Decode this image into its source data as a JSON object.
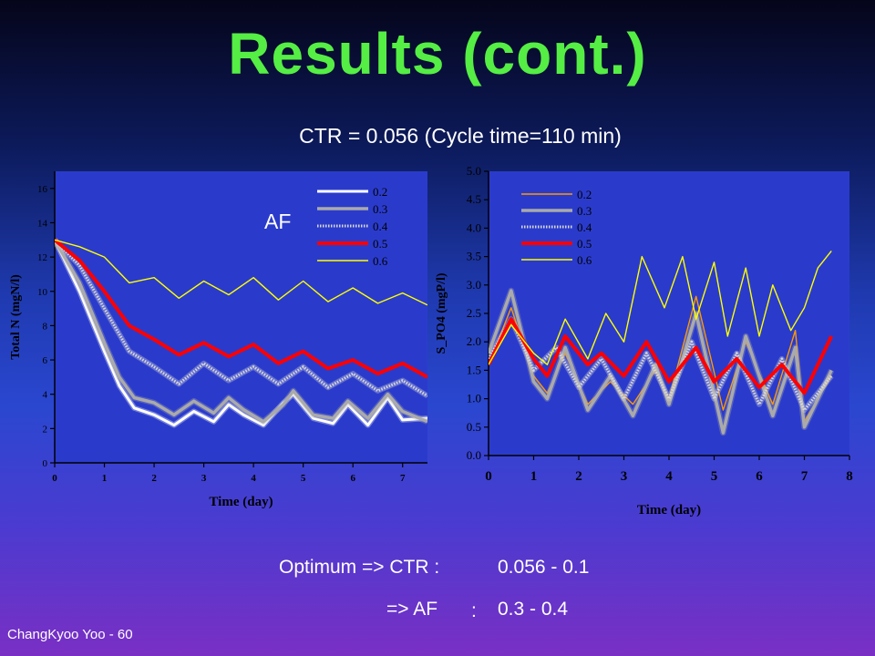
{
  "slide": {
    "title": "Results (cont.)",
    "subtitle": "CTR = 0.056 (Cycle time=110 min)",
    "af_label": "AF",
    "optimum_line1_prefix": "Optimum => CTR :",
    "optimum_line1_value": "0.056 - 0.1",
    "optimum_line2_prefix": "=> AF",
    "optimum_line2_colon": ":",
    "optimum_line2_value": "0.3 - 0.4",
    "credit": "ChangKyoo Yoo - 60"
  },
  "chart_data": [
    {
      "type": "line",
      "xlabel": "Time (day)",
      "ylabel": "Total N (mgN/l)",
      "xlim": [
        0,
        7.5
      ],
      "ylim": [
        0,
        17
      ],
      "x_ticks": [
        0,
        1,
        2,
        3,
        4,
        5,
        6,
        7
      ],
      "y_ticks": [
        0,
        2,
        4,
        6,
        8,
        10,
        12,
        14,
        16
      ],
      "legend_position": "top-right",
      "series": [
        {
          "name": "0.2",
          "color": "#ffffff",
          "x": [
            0,
            0.5,
            1.0,
            1.3,
            1.6,
            2.0,
            2.4,
            2.8,
            3.2,
            3.5,
            3.8,
            4.2,
            4.6,
            4.8,
            5.2,
            5.6,
            5.9,
            6.3,
            6.7,
            7.0,
            7.5
          ],
          "y": [
            13,
            10,
            6.5,
            4.5,
            3.2,
            2.8,
            2.2,
            3.0,
            2.4,
            3.4,
            2.8,
            2.2,
            3.5,
            4.0,
            2.6,
            2.3,
            3.4,
            2.2,
            3.8,
            2.5,
            2.6
          ]
        },
        {
          "name": "0.3",
          "color": "#aaaaaa",
          "x": [
            0,
            0.5,
            1.0,
            1.3,
            1.6,
            2.0,
            2.4,
            2.8,
            3.2,
            3.5,
            3.8,
            4.2,
            4.6,
            4.8,
            5.2,
            5.6,
            5.9,
            6.3,
            6.7,
            7.0,
            7.5
          ],
          "y": [
            13,
            10.5,
            7,
            5,
            3.8,
            3.5,
            2.8,
            3.6,
            2.9,
            3.8,
            3.1,
            2.4,
            3.4,
            4.2,
            2.8,
            2.6,
            3.6,
            2.6,
            4.0,
            3.0,
            2.4
          ]
        },
        {
          "name": "0.4",
          "color": "#d8d8d8",
          "x": [
            0,
            0.5,
            1.0,
            1.5,
            2.0,
            2.5,
            3.0,
            3.5,
            4.0,
            4.5,
            5.0,
            5.5,
            6.0,
            6.5,
            7.0,
            7.5
          ],
          "y": [
            13,
            11.5,
            9,
            6.5,
            5.6,
            4.6,
            5.8,
            4.8,
            5.6,
            4.6,
            5.6,
            4.4,
            5.2,
            4.2,
            4.8,
            3.9
          ]
        },
        {
          "name": "0.5",
          "color": "#ff0000",
          "x": [
            0,
            0.5,
            1.0,
            1.5,
            2.0,
            2.5,
            3.0,
            3.5,
            4.0,
            4.5,
            5.0,
            5.5,
            6.0,
            6.5,
            7.0,
            7.5
          ],
          "y": [
            13,
            11.8,
            10,
            8,
            7.2,
            6.3,
            7.0,
            6.2,
            6.9,
            5.8,
            6.5,
            5.5,
            6.0,
            5.2,
            5.8,
            5.0
          ]
        },
        {
          "name": "0.6",
          "color": "#ffff00",
          "x": [
            0,
            0.5,
            1.0,
            1.5,
            2.0,
            2.5,
            3.0,
            3.5,
            4.0,
            4.5,
            5.0,
            5.5,
            6.0,
            6.5,
            7.0,
            7.5
          ],
          "y": [
            13,
            12.6,
            12,
            10.5,
            10.8,
            9.6,
            10.6,
            9.8,
            10.8,
            9.5,
            10.6,
            9.4,
            10.2,
            9.3,
            9.9,
            9.2
          ]
        }
      ]
    },
    {
      "type": "line",
      "xlabel": "Time (day)",
      "ylabel": "S_PO4 (mgP/l)",
      "xlim": [
        0,
        8
      ],
      "ylim": [
        0,
        5
      ],
      "x_ticks": [
        0,
        1,
        2,
        3,
        4,
        5,
        6,
        7,
        8
      ],
      "y_ticks": [
        0.0,
        0.5,
        1.0,
        1.5,
        2.0,
        2.5,
        3.0,
        3.5,
        4.0,
        4.5,
        5.0
      ],
      "legend_position": "top-left",
      "series": [
        {
          "name": "0.2",
          "color": "#ff9900",
          "x": [
            0,
            0.5,
            1.0,
            1.3,
            1.7,
            2.2,
            2.7,
            3.2,
            3.7,
            4.0,
            4.6,
            5.2,
            5.7,
            6.3,
            6.8,
            7.0,
            7.6
          ],
          "y": [
            1.6,
            2.6,
            1.4,
            1.1,
            1.8,
            0.9,
            1.3,
            0.9,
            1.5,
            1.0,
            2.8,
            0.8,
            2.0,
            0.9,
            2.2,
            0.6,
            1.4
          ]
        },
        {
          "name": "0.3",
          "color": "#aaaaaa",
          "x": [
            0,
            0.5,
            1.0,
            1.3,
            1.7,
            2.2,
            2.7,
            3.2,
            3.7,
            4.0,
            4.6,
            5.2,
            5.7,
            6.3,
            6.8,
            7.0,
            7.6
          ],
          "y": [
            1.8,
            2.9,
            1.3,
            1.0,
            1.9,
            0.8,
            1.4,
            0.7,
            1.6,
            0.9,
            2.5,
            0.4,
            2.1,
            0.7,
            1.9,
            0.5,
            1.5
          ]
        },
        {
          "name": "0.4",
          "color": "#d8d8d8",
          "x": [
            0,
            0.5,
            1.0,
            1.5,
            2.0,
            2.5,
            3.0,
            3.5,
            4.0,
            4.5,
            5.0,
            5.5,
            6.0,
            6.5,
            7.0,
            7.6
          ],
          "y": [
            1.7,
            2.4,
            1.5,
            1.9,
            1.2,
            1.7,
            1.0,
            1.8,
            1.0,
            2.0,
            1.0,
            1.8,
            0.9,
            1.7,
            0.8,
            1.4
          ]
        },
        {
          "name": "0.5",
          "color": "#ff0000",
          "x": [
            0,
            0.5,
            1.0,
            1.3,
            1.7,
            2.2,
            2.5,
            3.0,
            3.5,
            4.0,
            4.6,
            5.0,
            5.5,
            6.0,
            6.5,
            7.0,
            7.6
          ],
          "y": [
            1.6,
            2.4,
            1.7,
            1.4,
            2.1,
            1.6,
            1.8,
            1.4,
            2.0,
            1.3,
            1.9,
            1.3,
            1.7,
            1.2,
            1.6,
            1.1,
            2.1
          ]
        },
        {
          "name": "0.6",
          "color": "#ffff00",
          "x": [
            0,
            0.5,
            1.0,
            1.3,
            1.7,
            2.2,
            2.6,
            3.0,
            3.4,
            3.9,
            4.3,
            4.6,
            5.0,
            5.3,
            5.7,
            6.0,
            6.3,
            6.7,
            7.0,
            7.3,
            7.6
          ],
          "y": [
            1.6,
            2.3,
            1.8,
            1.6,
            2.4,
            1.7,
            2.5,
            2.0,
            3.5,
            2.6,
            3.5,
            2.4,
            3.4,
            2.1,
            3.3,
            2.1,
            3.0,
            2.2,
            2.6,
            3.3,
            3.6
          ]
        }
      ]
    }
  ]
}
